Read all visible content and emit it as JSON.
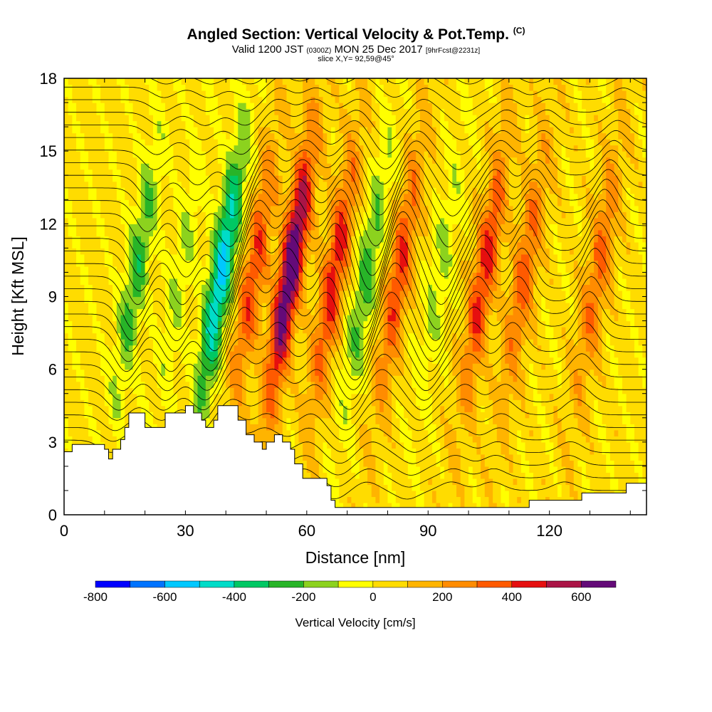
{
  "chart_data": {
    "type": "heatmap",
    "title": "Angled Section: Vertical Velocity & Pot.Temp.",
    "title_mark": "(C)",
    "subtitle": {
      "valid": "Valid 1200 JST",
      "utc": "(0300Z)",
      "date": "MON 25 Dec 2017",
      "forecast": "[9hrFcst@2231z]"
    },
    "slice": "slice X,Y= 92,59@45°",
    "xlabel": "Distance [nm]",
    "ylabel": "Height [Kft MSL]",
    "xlim": [
      0,
      144
    ],
    "ylim": [
      0,
      18
    ],
    "x_ticks": [
      0,
      30,
      60,
      90,
      120
    ],
    "y_ticks": [
      0,
      3,
      6,
      9,
      12,
      15,
      18
    ],
    "colorbar": {
      "label": "Vertical Velocity [cm/s]",
      "ticks": [
        -800,
        -600,
        -400,
        -200,
        0,
        200,
        400,
        600
      ],
      "levels": [
        -800,
        -700,
        -600,
        -500,
        -400,
        -300,
        -200,
        -100,
        0,
        100,
        200,
        300,
        400,
        500,
        600,
        700
      ],
      "colors": [
        "#0000ff",
        "#0073ff",
        "#00c8ff",
        "#00dcc8",
        "#00c864",
        "#28b428",
        "#8cd21e",
        "#ffff00",
        "#ffdc00",
        "#ffb400",
        "#ff8c00",
        "#ff5a00",
        "#e60f0f",
        "#aa1446",
        "#640a78"
      ]
    },
    "updrafts": [
      {
        "x": 46,
        "peak": 350
      },
      {
        "x": 55,
        "peak": 700
      },
      {
        "x": 66,
        "peak": 420
      },
      {
        "x": 82,
        "peak": 360
      },
      {
        "x": 103,
        "peak": 400
      },
      {
        "x": 113,
        "peak": 300
      },
      {
        "x": 131,
        "peak": 280
      }
    ],
    "downdrafts": [
      {
        "x": 17,
        "peak": -300
      },
      {
        "x": 28,
        "peak": -150
      },
      {
        "x": 38,
        "peak": -560
      },
      {
        "x": 74,
        "peak": -280
      },
      {
        "x": 92,
        "peak": -160
      }
    ],
    "terrain_kft": [
      [
        0,
        2.6
      ],
      [
        2,
        2.9
      ],
      [
        9,
        2.9
      ],
      [
        10,
        2.7
      ],
      [
        11,
        2.3
      ],
      [
        12,
        2.7
      ],
      [
        14,
        3.1
      ],
      [
        15,
        3.6
      ],
      [
        16,
        4.2
      ],
      [
        19,
        4.2
      ],
      [
        20,
        3.6
      ],
      [
        23,
        3.6
      ],
      [
        25,
        4.2
      ],
      [
        28,
        4.2
      ],
      [
        30,
        4.5
      ],
      [
        32,
        4.2
      ],
      [
        34,
        3.9
      ],
      [
        35,
        3.6
      ],
      [
        37,
        3.9
      ],
      [
        38,
        4.5
      ],
      [
        41,
        4.5
      ],
      [
        43,
        3.9
      ],
      [
        45,
        3.3
      ],
      [
        47,
        3.0
      ],
      [
        49,
        2.7
      ],
      [
        50,
        3.0
      ],
      [
        52,
        3.3
      ],
      [
        54,
        3.0
      ],
      [
        56,
        2.7
      ],
      [
        57,
        2.1
      ],
      [
        59,
        1.5
      ],
      [
        63,
        1.5
      ],
      [
        65,
        1.2
      ],
      [
        66,
        0.6
      ],
      [
        67,
        0.3
      ],
      [
        114,
        0.3
      ],
      [
        115,
        0.6
      ],
      [
        126,
        0.6
      ],
      [
        128,
        0.9
      ],
      [
        138,
        0.9
      ],
      [
        139,
        1.3
      ],
      [
        144,
        1.3
      ]
    ]
  }
}
